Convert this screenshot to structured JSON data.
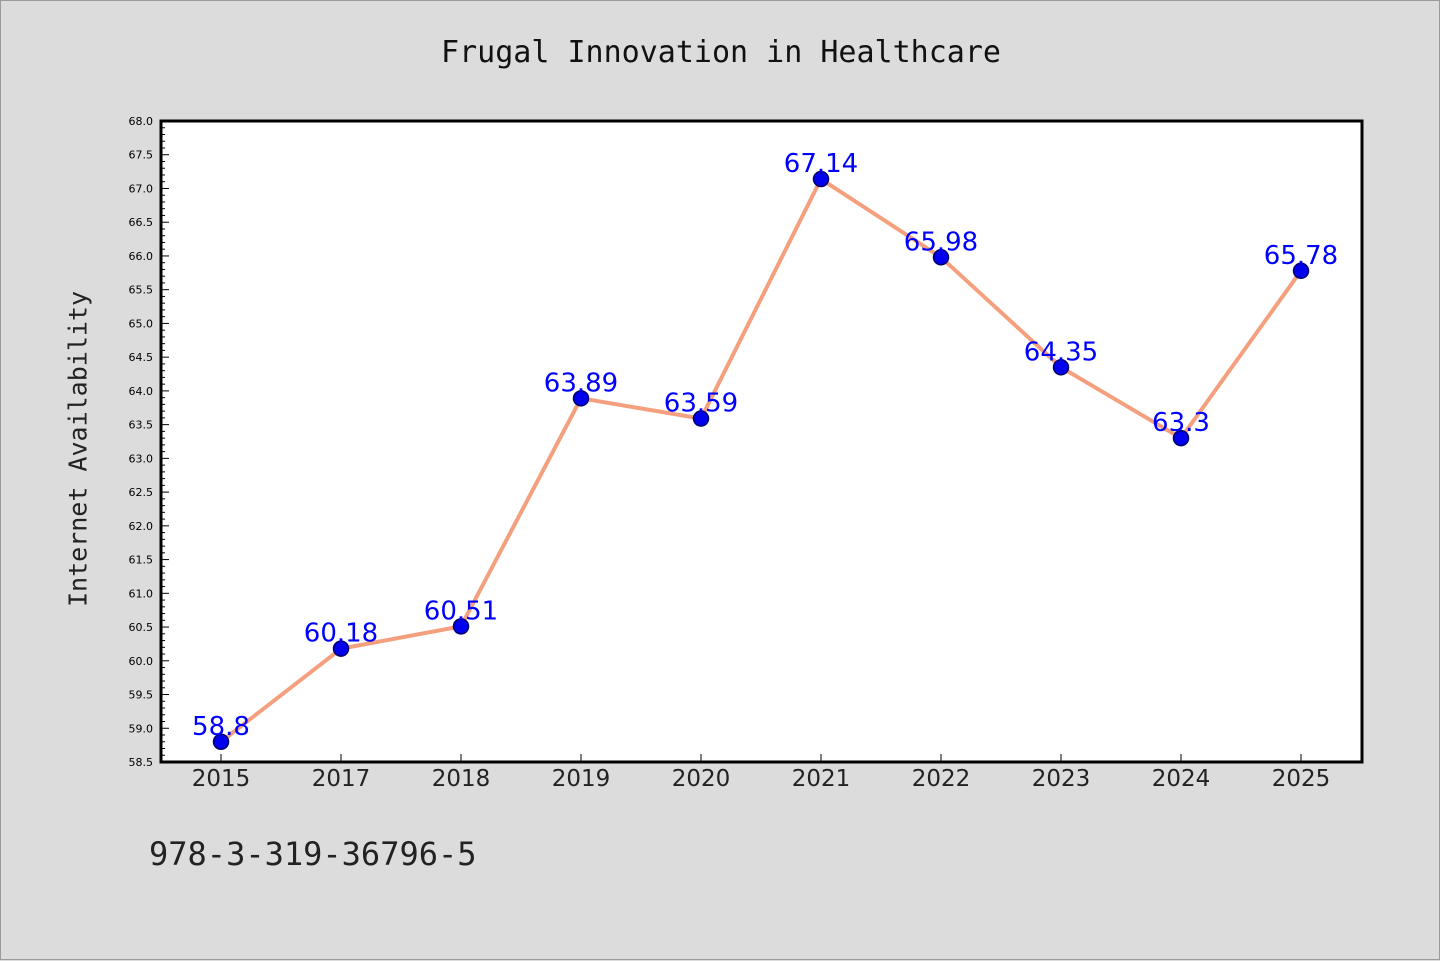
{
  "chart_data": {
    "type": "line",
    "title": "Frugal Innovation in Healthcare",
    "xlabel": "",
    "ylabel": "Internet Availability",
    "categories": [
      "2015",
      "2017",
      "2018",
      "2019",
      "2020",
      "2021",
      "2022",
      "2023",
      "2024",
      "2025"
    ],
    "series": [
      {
        "values": [
          58.8,
          60.18,
          60.51,
          63.89,
          63.59,
          67.14,
          65.98,
          64.35,
          63.3,
          65.78
        ],
        "labels": [
          "58.8",
          "60.18",
          "60.51",
          "63.89",
          "63.59",
          "67.14",
          "65.98",
          "64.35",
          "63.3",
          "65.78"
        ]
      }
    ],
    "ylim": [
      58.5,
      68.0
    ],
    "yticks": [
      "58.5",
      "59.0",
      "59.5",
      "60.0",
      "60.5",
      "61.0",
      "61.5",
      "62.0",
      "62.5",
      "63.0",
      "63.5",
      "64.0",
      "64.5",
      "65.0",
      "65.5",
      "66.0",
      "66.5",
      "67.0",
      "67.5",
      "68.0"
    ],
    "grid": false,
    "legend": "none",
    "colors": {
      "line": "#f4a07e",
      "marker": "#0000ee",
      "marker_edge": "#00006a",
      "data_label": "#0000ff",
      "background": "#dcdcdc",
      "plot_area": "#ffffff"
    }
  },
  "footer": {
    "code": "978-3-319-36796-5"
  }
}
